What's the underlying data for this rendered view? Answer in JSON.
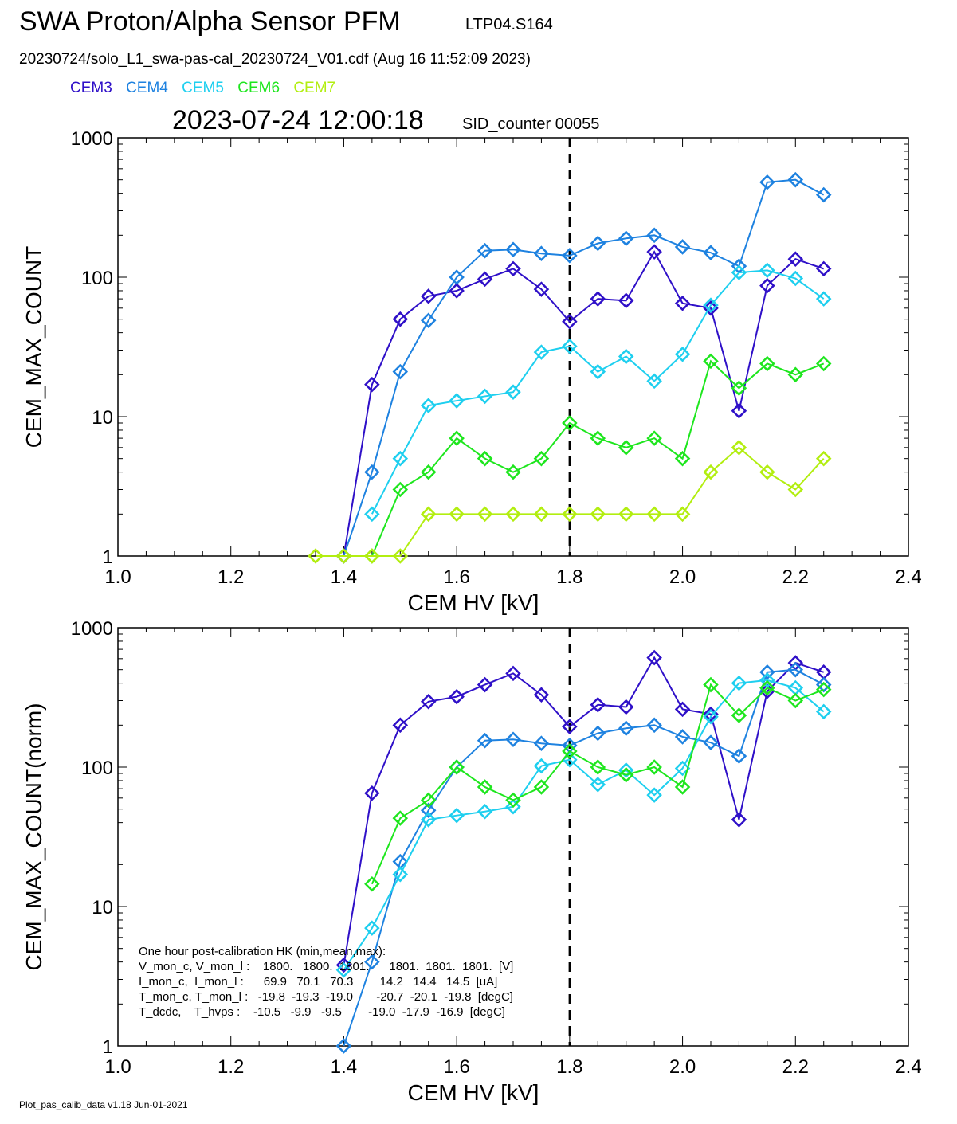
{
  "header": {
    "title": "SWA Proton/Alpha Sensor PFM",
    "subtitle": "LTP04.S164",
    "file_line": "20230724/solo_L1_swa-pas-cal_20230724_V01.cdf  (Aug 16 11:52:09 2023)",
    "timestamp": "2023-07-24 12:00:18",
    "sid_counter": "SID_counter 00055"
  },
  "legend": [
    {
      "name": "CEM3",
      "color": "#2f10c8"
    },
    {
      "name": "CEM4",
      "color": "#1e82e0"
    },
    {
      "name": "CEM5",
      "color": "#1ecfef"
    },
    {
      "name": "CEM6",
      "color": "#1ee61e"
    },
    {
      "name": "CEM7",
      "color": "#b2ee10"
    }
  ],
  "footer": "Plot_pas_calib_data v1.18 Jun-01-2021",
  "hk_table": [
    "One hour post-calibration HK (min,mean,max):",
    "V_mon_c, V_mon_l :    1800.   1800.  1801.      1801.  1801.  1801.  [V]",
    "I_mon_c,  I_mon_l :      69.9   70.1   70.3        14.2   14.4   14.5  [uA]",
    "T_mon_c, T_mon_l :   -19.8  -19.3  -19.0       -20.7  -20.1  -19.8  [degC]",
    "T_dcdc,    T_hvps :    -10.5   -9.9   -9.5        -19.0  -17.9  -16.9  [degC]"
  ],
  "chart_data": [
    {
      "type": "line",
      "xlabel": "CEM HV [kV]",
      "ylabel": "CEM_MAX_COUNT",
      "yscale": "log",
      "xlim": [
        1.0,
        2.4
      ],
      "ylim": [
        1,
        1000
      ],
      "xticks": [
        "1.0",
        "1.2",
        "1.4",
        "1.6",
        "1.8",
        "2.0",
        "2.2",
        "2.4"
      ],
      "yticks": [
        "1",
        "10",
        "100",
        "1000"
      ],
      "vline_x": 1.8,
      "series": [
        {
          "name": "CEM3",
          "color": "#2f10c8",
          "x": [
            1.4,
            1.45,
            1.5,
            1.55,
            1.6,
            1.65,
            1.7,
            1.75,
            1.8,
            1.85,
            1.9,
            1.95,
            2.0,
            2.05,
            2.1,
            2.15,
            2.2,
            2.25
          ],
          "y": [
            1,
            17,
            50,
            73,
            80,
            97,
            115,
            82,
            48,
            70,
            68,
            152,
            65,
            60,
            11,
            87,
            135,
            115
          ]
        },
        {
          "name": "CEM4",
          "color": "#1e82e0",
          "x": [
            1.4,
            1.45,
            1.5,
            1.55,
            1.6,
            1.65,
            1.7,
            1.75,
            1.8,
            1.85,
            1.9,
            1.95,
            2.0,
            2.05,
            2.1,
            2.15,
            2.2,
            2.25
          ],
          "y": [
            1,
            4,
            21,
            49,
            100,
            155,
            158,
            148,
            143,
            175,
            190,
            200,
            165,
            150,
            120,
            480,
            500,
            390
          ]
        },
        {
          "name": "CEM5",
          "color": "#1ecfef",
          "x": [
            1.45,
            1.5,
            1.55,
            1.6,
            1.65,
            1.7,
            1.75,
            1.8,
            1.85,
            1.9,
            1.95,
            2.0,
            2.05,
            2.1,
            2.15,
            2.2,
            2.25
          ],
          "y": [
            2,
            5,
            12,
            13,
            14,
            15,
            29,
            32,
            21,
            27,
            18,
            28,
            63,
            108,
            112,
            98,
            70
          ]
        },
        {
          "name": "CEM6",
          "color": "#1ee61e",
          "x": [
            1.45,
            1.5,
            1.55,
            1.6,
            1.65,
            1.7,
            1.75,
            1.8,
            1.85,
            1.9,
            1.95,
            2.0,
            2.05,
            2.1,
            2.15,
            2.2,
            2.25
          ],
          "y": [
            1,
            3,
            4,
            7,
            5,
            4,
            5,
            9,
            7,
            6,
            7,
            5,
            25,
            16,
            24,
            20,
            24
          ]
        },
        {
          "name": "CEM7",
          "color": "#b2ee10",
          "x": [
            1.35,
            1.4,
            1.45,
            1.5,
            1.55,
            1.6,
            1.65,
            1.7,
            1.75,
            1.8,
            1.85,
            1.9,
            1.95,
            2.0,
            2.05,
            2.1,
            2.15,
            2.2,
            2.25
          ],
          "y": [
            1,
            1,
            1,
            1,
            2,
            2,
            2,
            2,
            2,
            2,
            2,
            2,
            2,
            2,
            4,
            6,
            4,
            3,
            5
          ]
        }
      ]
    },
    {
      "type": "line",
      "xlabel": "CEM HV [kV]",
      "ylabel": "CEM_MAX_COUNT(norm)",
      "yscale": "log",
      "xlim": [
        1.0,
        2.4
      ],
      "ylim": [
        1,
        1000
      ],
      "xticks": [
        "1.0",
        "1.2",
        "1.4",
        "1.6",
        "1.8",
        "2.0",
        "2.2",
        "2.4"
      ],
      "yticks": [
        "1",
        "10",
        "100",
        "1000"
      ],
      "vline_x": 1.8,
      "series": [
        {
          "name": "CEM3",
          "color": "#2f10c8",
          "x": [
            1.4,
            1.45,
            1.5,
            1.55,
            1.6,
            1.65,
            1.7,
            1.75,
            1.8,
            1.85,
            1.9,
            1.95,
            2.0,
            2.05,
            2.1,
            2.15,
            2.2,
            2.25
          ],
          "y": [
            3.8,
            65,
            200,
            295,
            320,
            390,
            470,
            330,
            195,
            280,
            270,
            610,
            260,
            240,
            42,
            350,
            560,
            480
          ]
        },
        {
          "name": "CEM4",
          "color": "#1e82e0",
          "x": [
            1.4,
            1.45,
            1.5,
            1.55,
            1.6,
            1.65,
            1.7,
            1.75,
            1.8,
            1.85,
            1.9,
            1.95,
            2.0,
            2.05,
            2.1,
            2.15,
            2.2,
            2.25
          ],
          "y": [
            1,
            4,
            21,
            49,
            100,
            155,
            158,
            148,
            143,
            175,
            190,
            200,
            165,
            150,
            120,
            480,
            500,
            390
          ]
        },
        {
          "name": "CEM5",
          "color": "#1ecfef",
          "x": [
            1.4,
            1.45,
            1.5,
            1.55,
            1.6,
            1.65,
            1.7,
            1.75,
            1.8,
            1.85,
            1.9,
            1.95,
            2.0,
            2.05,
            2.1,
            2.15,
            2.2,
            2.25
          ],
          "y": [
            3.5,
            7,
            17,
            42,
            45,
            48,
            52,
            102,
            113,
            75,
            95,
            63,
            98,
            230,
            400,
            420,
            370,
            250
          ]
        },
        {
          "name": "CEM6",
          "color": "#1ee61e",
          "x": [
            1.45,
            1.5,
            1.55,
            1.6,
            1.65,
            1.7,
            1.75,
            1.8,
            1.85,
            1.9,
            1.95,
            2.0,
            2.05,
            2.1,
            2.15,
            2.2,
            2.25
          ],
          "y": [
            14.5,
            43,
            58,
            100,
            72,
            58,
            72,
            130,
            100,
            88,
            100,
            72,
            390,
            235,
            370,
            300,
            360
          ]
        }
      ]
    }
  ]
}
